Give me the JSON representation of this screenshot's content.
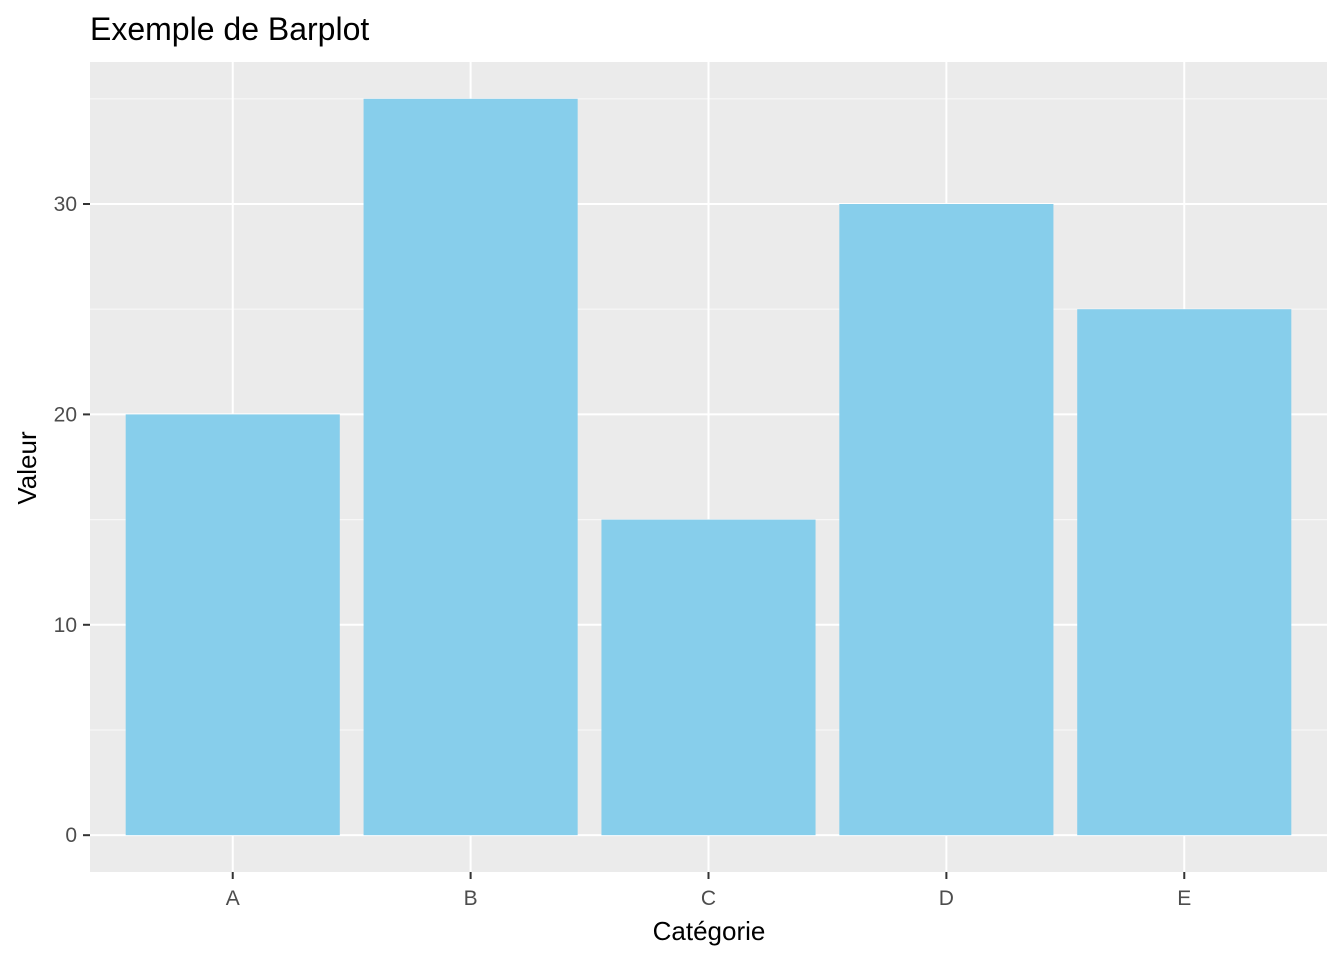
{
  "chart_data": {
    "type": "bar",
    "title": "Exemple de Barplot",
    "xlabel": "Catégorie",
    "ylabel": "Valeur",
    "categories": [
      "A",
      "B",
      "C",
      "D",
      "E"
    ],
    "values": [
      20,
      35,
      15,
      30,
      25
    ],
    "ylim": [
      -1.75,
      36.75
    ],
    "yticks": [
      0,
      10,
      20,
      30
    ],
    "ytick_labels": [
      "0",
      "10",
      "20",
      "30"
    ],
    "grid": true,
    "legend": "none",
    "colors": {
      "bar": "#87CEEB",
      "panel_background": "#EBEBEB",
      "grid_major": "#FFFFFF",
      "grid_minor": "#F7F7F7",
      "tick_text": "#4D4D4D",
      "tick_mark": "#333333"
    }
  }
}
